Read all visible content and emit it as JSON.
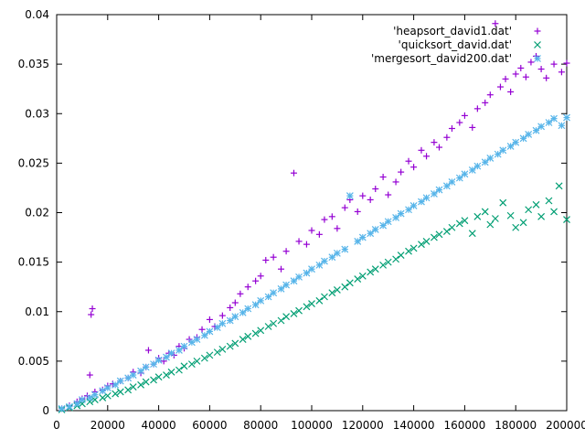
{
  "chart_data": {
    "type": "scatter",
    "title": "",
    "xlabel": "",
    "ylabel": "",
    "xlim": [
      0,
      200000
    ],
    "ylim": [
      0,
      0.04
    ],
    "x_ticks": [
      0,
      20000,
      40000,
      60000,
      80000,
      100000,
      120000,
      140000,
      160000,
      180000,
      200000
    ],
    "x_tick_labels": [
      "0",
      "20000",
      "40000",
      "60000",
      "80000",
      "100000",
      "120000",
      "140000",
      "160000",
      "180000",
      "200000"
    ],
    "y_ticks": [
      0,
      0.005,
      0.01,
      0.015,
      0.02,
      0.025,
      0.03,
      0.035,
      0.04
    ],
    "y_tick_labels": [
      "0",
      "0.005",
      "0.01",
      "0.015",
      "0.02",
      "0.025",
      "0.03",
      "0.035",
      "0.04"
    ],
    "grid": false,
    "legend_position": "top-right",
    "series": [
      {
        "name": "'heapsort_david1.dat'",
        "marker": "plus",
        "color": "#9400d3",
        "points": [
          [
            2000,
            0.0002
          ],
          [
            5000,
            0.0005
          ],
          [
            8000,
            0.0009
          ],
          [
            10000,
            0.0012
          ],
          [
            12000,
            0.0015
          ],
          [
            13000,
            0.0036
          ],
          [
            13500,
            0.0097
          ],
          [
            14000,
            0.0103
          ],
          [
            15000,
            0.0019
          ],
          [
            18000,
            0.0021
          ],
          [
            20000,
            0.0025
          ],
          [
            22000,
            0.0027
          ],
          [
            25000,
            0.003
          ],
          [
            28000,
            0.0033
          ],
          [
            30000,
            0.0039
          ],
          [
            33000,
            0.0038
          ],
          [
            35000,
            0.0044
          ],
          [
            36000,
            0.0061
          ],
          [
            38000,
            0.0047
          ],
          [
            40000,
            0.0053
          ],
          [
            42000,
            0.005
          ],
          [
            44000,
            0.0058
          ],
          [
            46000,
            0.0056
          ],
          [
            48000,
            0.0065
          ],
          [
            50000,
            0.0063
          ],
          [
            52000,
            0.0072
          ],
          [
            55000,
            0.0074
          ],
          [
            57000,
            0.0082
          ],
          [
            60000,
            0.0092
          ],
          [
            62000,
            0.0085
          ],
          [
            65000,
            0.0096
          ],
          [
            68000,
            0.0104
          ],
          [
            70000,
            0.0109
          ],
          [
            72000,
            0.0118
          ],
          [
            75000,
            0.0125
          ],
          [
            78000,
            0.0131
          ],
          [
            80000,
            0.0136
          ],
          [
            82000,
            0.0152
          ],
          [
            85000,
            0.0155
          ],
          [
            88000,
            0.0143
          ],
          [
            90000,
            0.0161
          ],
          [
            93000,
            0.024
          ],
          [
            95000,
            0.0171
          ],
          [
            98000,
            0.0168
          ],
          [
            100000,
            0.0182
          ],
          [
            103000,
            0.0178
          ],
          [
            105000,
            0.0193
          ],
          [
            108000,
            0.0196
          ],
          [
            110000,
            0.0184
          ],
          [
            113000,
            0.0205
          ],
          [
            115000,
            0.0213
          ],
          [
            118000,
            0.0201
          ],
          [
            120000,
            0.0217
          ],
          [
            123000,
            0.0213
          ],
          [
            125000,
            0.0224
          ],
          [
            128000,
            0.0236
          ],
          [
            130000,
            0.0218
          ],
          [
            133000,
            0.0231
          ],
          [
            135000,
            0.0241
          ],
          [
            138000,
            0.0252
          ],
          [
            140000,
            0.0246
          ],
          [
            143000,
            0.0263
          ],
          [
            145000,
            0.0257
          ],
          [
            148000,
            0.0271
          ],
          [
            150000,
            0.0266
          ],
          [
            153000,
            0.0276
          ],
          [
            155000,
            0.0285
          ],
          [
            158000,
            0.0291
          ],
          [
            160000,
            0.0298
          ],
          [
            163000,
            0.0286
          ],
          [
            165000,
            0.0305
          ],
          [
            168000,
            0.0311
          ],
          [
            170000,
            0.0319
          ],
          [
            172000,
            0.0391
          ],
          [
            174000,
            0.0327
          ],
          [
            176000,
            0.0335
          ],
          [
            178000,
            0.0322
          ],
          [
            180000,
            0.034
          ],
          [
            182000,
            0.0346
          ],
          [
            184000,
            0.0337
          ],
          [
            186000,
            0.0352
          ],
          [
            188000,
            0.0358
          ],
          [
            190000,
            0.0345
          ],
          [
            192000,
            0.0336
          ],
          [
            195000,
            0.035
          ],
          [
            198000,
            0.0342
          ],
          [
            200000,
            0.0351
          ]
        ]
      },
      {
        "name": "'quicksort_david.dat'",
        "marker": "cross",
        "color": "#009e73",
        "points": [
          [
            2000,
            0.0001
          ],
          [
            5000,
            0.0003
          ],
          [
            8000,
            0.0005
          ],
          [
            10000,
            0.0007
          ],
          [
            13000,
            0.0009
          ],
          [
            15000,
            0.0011
          ],
          [
            18000,
            0.0013
          ],
          [
            20000,
            0.0015
          ],
          [
            23000,
            0.0017
          ],
          [
            25000,
            0.0019
          ],
          [
            28000,
            0.0021
          ],
          [
            30000,
            0.0024
          ],
          [
            33000,
            0.0026
          ],
          [
            35000,
            0.0029
          ],
          [
            38000,
            0.0031
          ],
          [
            40000,
            0.0034
          ],
          [
            43000,
            0.0036
          ],
          [
            45000,
            0.0039
          ],
          [
            48000,
            0.0041
          ],
          [
            50000,
            0.0045
          ],
          [
            53000,
            0.0047
          ],
          [
            55000,
            0.005
          ],
          [
            58000,
            0.0053
          ],
          [
            60000,
            0.0056
          ],
          [
            63000,
            0.0059
          ],
          [
            65000,
            0.0062
          ],
          [
            68000,
            0.0065
          ],
          [
            70000,
            0.0068
          ],
          [
            73000,
            0.0072
          ],
          [
            75000,
            0.0075
          ],
          [
            78000,
            0.0078
          ],
          [
            80000,
            0.0081
          ],
          [
            83000,
            0.0085
          ],
          [
            85000,
            0.0088
          ],
          [
            88000,
            0.0091
          ],
          [
            90000,
            0.0095
          ],
          [
            93000,
            0.0098
          ],
          [
            95000,
            0.0101
          ],
          [
            98000,
            0.0105
          ],
          [
            100000,
            0.0108
          ],
          [
            103000,
            0.0111
          ],
          [
            105000,
            0.0115
          ],
          [
            108000,
            0.0119
          ],
          [
            110000,
            0.0122
          ],
          [
            113000,
            0.0125
          ],
          [
            115000,
            0.0129
          ],
          [
            118000,
            0.0133
          ],
          [
            120000,
            0.0136
          ],
          [
            123000,
            0.014
          ],
          [
            125000,
            0.0143
          ],
          [
            128000,
            0.0147
          ],
          [
            130000,
            0.015
          ],
          [
            133000,
            0.0153
          ],
          [
            135000,
            0.0157
          ],
          [
            138000,
            0.0161
          ],
          [
            140000,
            0.0164
          ],
          [
            143000,
            0.0168
          ],
          [
            145000,
            0.0171
          ],
          [
            148000,
            0.0175
          ],
          [
            150000,
            0.0178
          ],
          [
            153000,
            0.0181
          ],
          [
            155000,
            0.0185
          ],
          [
            158000,
            0.0189
          ],
          [
            160000,
            0.0192
          ],
          [
            163000,
            0.0179
          ],
          [
            165000,
            0.0196
          ],
          [
            168000,
            0.0201
          ],
          [
            170000,
            0.0188
          ],
          [
            172000,
            0.0194
          ],
          [
            175000,
            0.021
          ],
          [
            178000,
            0.0197
          ],
          [
            180000,
            0.0185
          ],
          [
            183000,
            0.019
          ],
          [
            185000,
            0.0203
          ],
          [
            188000,
            0.0208
          ],
          [
            190000,
            0.0196
          ],
          [
            193000,
            0.0212
          ],
          [
            195000,
            0.0201
          ],
          [
            197000,
            0.0227
          ],
          [
            200000,
            0.0193
          ]
        ]
      },
      {
        "name": "'mergesort_david200.dat'",
        "marker": "star",
        "color": "#56b4e9",
        "points": [
          [
            2000,
            0.0002
          ],
          [
            5000,
            0.0004
          ],
          [
            8000,
            0.0007
          ],
          [
            10000,
            0.0011
          ],
          [
            13000,
            0.0013
          ],
          [
            15000,
            0.0016
          ],
          [
            18000,
            0.002
          ],
          [
            20000,
            0.0023
          ],
          [
            23000,
            0.0026
          ],
          [
            25000,
            0.003
          ],
          [
            28000,
            0.0033
          ],
          [
            30000,
            0.0036
          ],
          [
            33000,
            0.004
          ],
          [
            35000,
            0.0044
          ],
          [
            38000,
            0.0047
          ],
          [
            40000,
            0.0051
          ],
          [
            43000,
            0.0054
          ],
          [
            45000,
            0.0058
          ],
          [
            48000,
            0.0061
          ],
          [
            50000,
            0.0065
          ],
          [
            53000,
            0.0069
          ],
          [
            55000,
            0.0072
          ],
          [
            58000,
            0.0076
          ],
          [
            60000,
            0.008
          ],
          [
            63000,
            0.0084
          ],
          [
            65000,
            0.0088
          ],
          [
            68000,
            0.0091
          ],
          [
            70000,
            0.0095
          ],
          [
            73000,
            0.0099
          ],
          [
            75000,
            0.0103
          ],
          [
            78000,
            0.0107
          ],
          [
            80000,
            0.0111
          ],
          [
            83000,
            0.0115
          ],
          [
            85000,
            0.0119
          ],
          [
            88000,
            0.0123
          ],
          [
            90000,
            0.0127
          ],
          [
            93000,
            0.0131
          ],
          [
            95000,
            0.0135
          ],
          [
            98000,
            0.0139
          ],
          [
            100000,
            0.0143
          ],
          [
            103000,
            0.0147
          ],
          [
            105000,
            0.0151
          ],
          [
            108000,
            0.0155
          ],
          [
            110000,
            0.0159
          ],
          [
            113000,
            0.0163
          ],
          [
            115000,
            0.0217
          ],
          [
            118000,
            0.0171
          ],
          [
            120000,
            0.0175
          ],
          [
            123000,
            0.0179
          ],
          [
            125000,
            0.0183
          ],
          [
            128000,
            0.0187
          ],
          [
            130000,
            0.0191
          ],
          [
            133000,
            0.0195
          ],
          [
            135000,
            0.0199
          ],
          [
            138000,
            0.0203
          ],
          [
            140000,
            0.0207
          ],
          [
            143000,
            0.0211
          ],
          [
            145000,
            0.0215
          ],
          [
            148000,
            0.0219
          ],
          [
            150000,
            0.0223
          ],
          [
            153000,
            0.0227
          ],
          [
            155000,
            0.0231
          ],
          [
            158000,
            0.0235
          ],
          [
            160000,
            0.0239
          ],
          [
            163000,
            0.0243
          ],
          [
            165000,
            0.0247
          ],
          [
            168000,
            0.0251
          ],
          [
            170000,
            0.0255
          ],
          [
            173000,
            0.0259
          ],
          [
            175000,
            0.0263
          ],
          [
            178000,
            0.0267
          ],
          [
            180000,
            0.0271
          ],
          [
            183000,
            0.0275
          ],
          [
            185000,
            0.0279
          ],
          [
            188000,
            0.0283
          ],
          [
            190000,
            0.0287
          ],
          [
            193000,
            0.0291
          ],
          [
            195000,
            0.0295
          ],
          [
            198000,
            0.0288
          ],
          [
            200000,
            0.0296
          ]
        ]
      }
    ]
  }
}
